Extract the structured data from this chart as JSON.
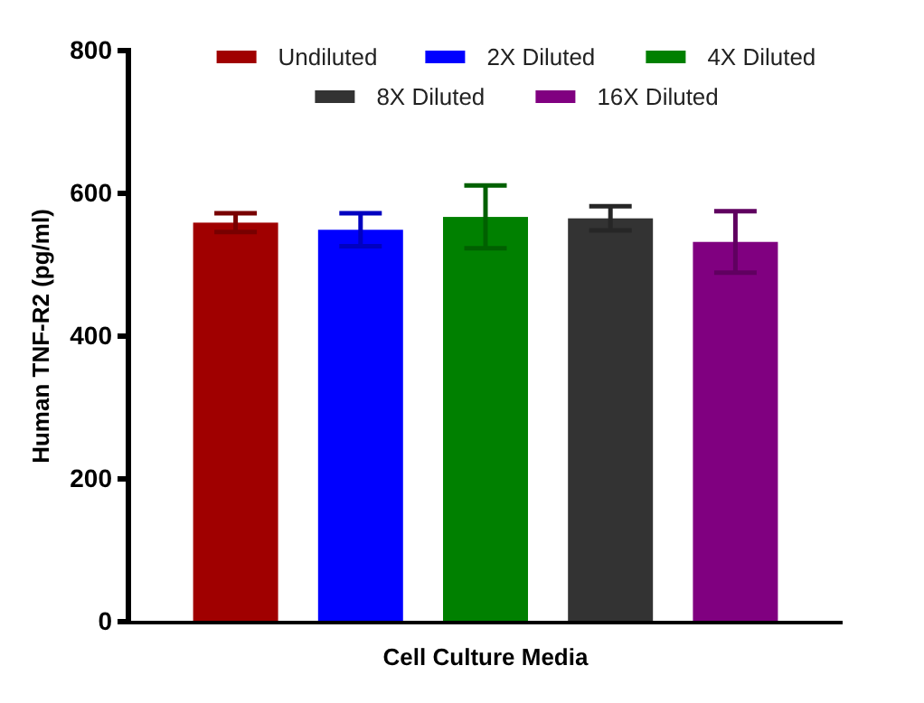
{
  "chart_data": {
    "type": "bar",
    "categories": [
      "Cell Culture Media"
    ],
    "ylabel": "Human TNF-R2 (pg/ml)",
    "ylim": [
      0,
      800
    ],
    "yticks": [
      0,
      200,
      400,
      600,
      800
    ],
    "grid": false,
    "legend": "top",
    "series": [
      {
        "name": "Undiluted",
        "color": "#a00000",
        "values": [
          559
        ],
        "errors": [
          13
        ]
      },
      {
        "name": "2X Diluted",
        "color": "#0000ff",
        "values": [
          549
        ],
        "errors": [
          23
        ]
      },
      {
        "name": "4X Diluted",
        "color": "#008000",
        "values": [
          567
        ],
        "errors": [
          44
        ]
      },
      {
        "name": "8X Diluted",
        "color": "#333333",
        "values": [
          565
        ],
        "errors": [
          17
        ]
      },
      {
        "name": "16X Diluted",
        "color": "#800080",
        "values": [
          532
        ],
        "errors": [
          43
        ]
      }
    ]
  }
}
